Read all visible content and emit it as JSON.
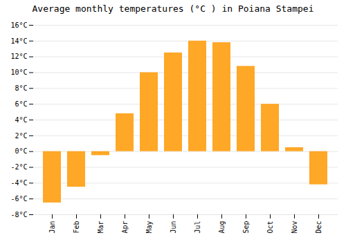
{
  "chart_data": {
    "type": "bar",
    "title": "Average monthly temperatures (°C ) in Poiana Stampei",
    "categories": [
      "Jan",
      "Feb",
      "Mar",
      "Apr",
      "May",
      "Jun",
      "Jul",
      "Aug",
      "Sep",
      "Oct",
      "Nov",
      "Dec"
    ],
    "values": [
      -6.5,
      -4.5,
      -0.5,
      4.8,
      10.0,
      12.5,
      14.0,
      13.8,
      10.8,
      6.0,
      0.5,
      -4.2
    ],
    "color": "#FFA726",
    "ylim": [
      -8,
      16
    ],
    "yticks": [
      {
        "value": -8,
        "label": "-8°C"
      },
      {
        "value": -6,
        "label": "-6°C"
      },
      {
        "value": -4,
        "label": "-4°C"
      },
      {
        "value": -2,
        "label": "-2°C"
      },
      {
        "value": 0,
        "label": "0°C"
      },
      {
        "value": 2,
        "label": "2°C"
      },
      {
        "value": 4,
        "label": "4°C"
      },
      {
        "value": 6,
        "label": "6°C"
      },
      {
        "value": 8,
        "label": "8°C"
      },
      {
        "value": 10,
        "label": "10°C"
      },
      {
        "value": 12,
        "label": "12°C"
      },
      {
        "value": 14,
        "label": "14°C"
      },
      {
        "value": 16,
        "label": "16°C"
      }
    ],
    "grid": true
  }
}
